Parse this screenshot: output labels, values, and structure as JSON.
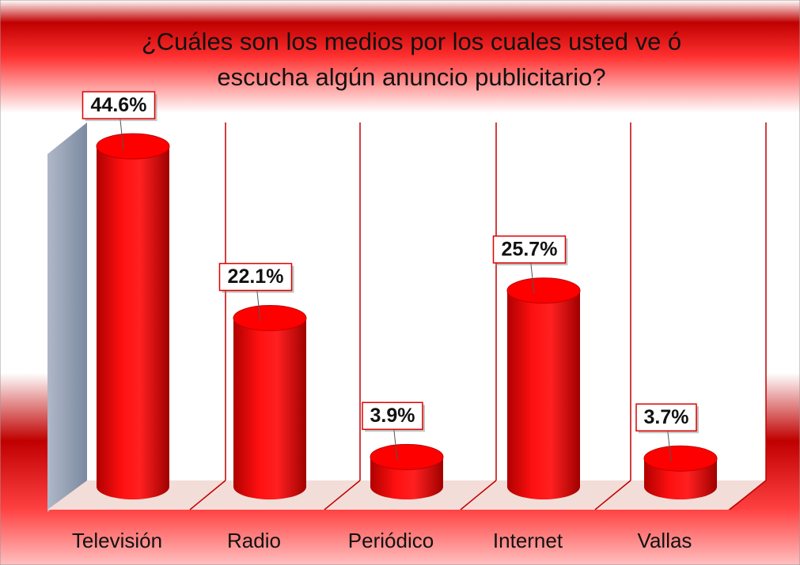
{
  "chart_data": {
    "type": "bar",
    "title": "¿Cuáles son los medios por los cuales usted ve ó escucha algún anuncio publicitario?",
    "categories": [
      "Televisión",
      "Radio",
      "Periódico",
      "Internet",
      "Vallas"
    ],
    "values": [
      44.6,
      22.1,
      3.9,
      25.7,
      3.7
    ],
    "value_labels": [
      "44.6%",
      "22.1%",
      "3.9%",
      "25.7%",
      "3.7%"
    ],
    "color": "#ff0000"
  }
}
